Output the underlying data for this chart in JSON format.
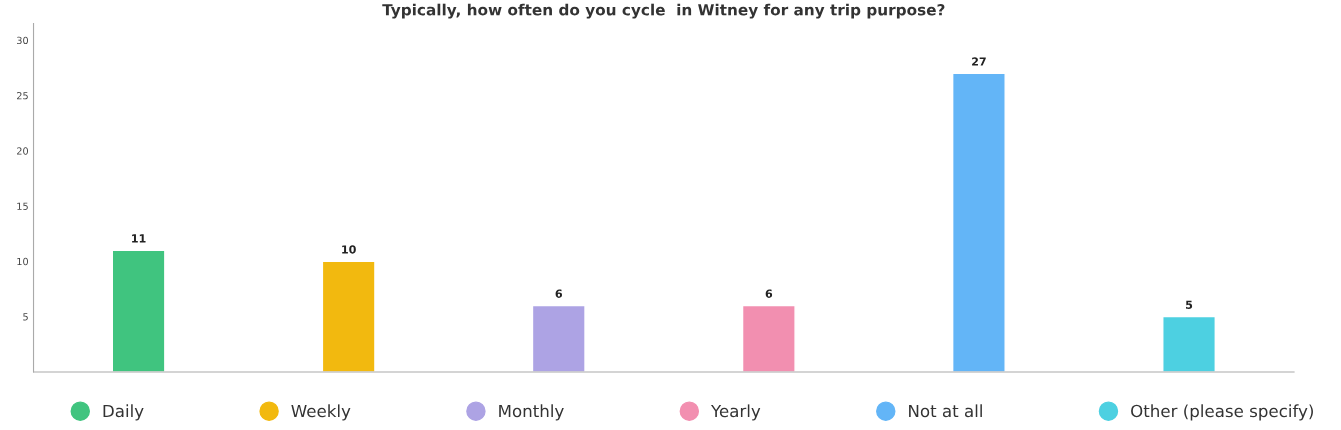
{
  "chart_data": {
    "type": "bar",
    "title": "Typically, how often do you cycle  in Witney for any trip purpose?",
    "categories": [
      null,
      null,
      null,
      null,
      null,
      null
    ],
    "series": [
      {
        "name": "Daily",
        "color": "#40c47f",
        "values": [
          11,
          null,
          null,
          null,
          null,
          null
        ]
      },
      {
        "name": "Weekly",
        "color": "#f2b90f",
        "values": [
          null,
          10,
          null,
          null,
          null,
          null
        ]
      },
      {
        "name": "Monthly",
        "color": "#ada3e4",
        "values": [
          null,
          null,
          6,
          null,
          null,
          null
        ]
      },
      {
        "name": "Yearly",
        "color": "#f28fb0",
        "values": [
          null,
          null,
          null,
          6,
          null,
          null
        ]
      },
      {
        "name": "Not at all",
        "color": "#63b5f7",
        "values": [
          null,
          null,
          null,
          null,
          27,
          null
        ]
      },
      {
        "name": "Other (please specify)",
        "color": "#4dd0e1",
        "values": [
          null,
          null,
          null,
          null,
          null,
          5
        ]
      }
    ],
    "ylim": [
      0,
      31.5
    ],
    "yticks": [
      5,
      10,
      15,
      20,
      25,
      30
    ],
    "data_labels": true,
    "grid": false,
    "legend": "bottom",
    "marker": "circle"
  }
}
